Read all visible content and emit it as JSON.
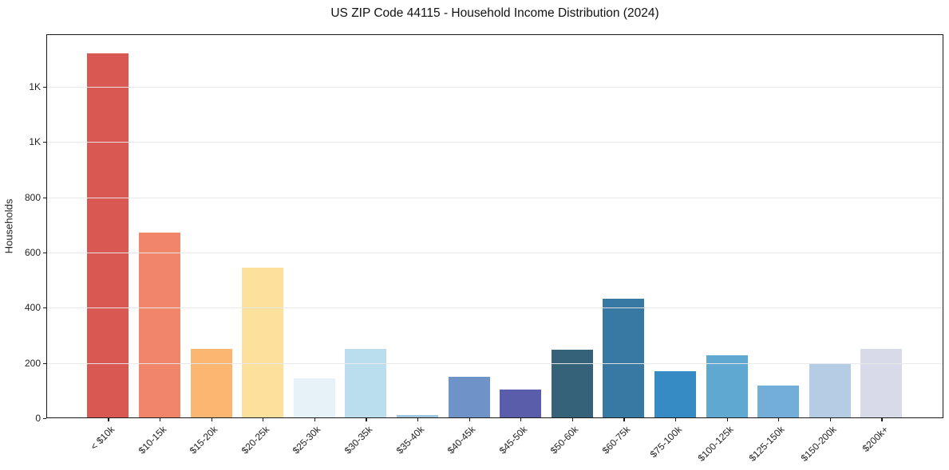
{
  "window": {
    "background_color": "#ffffff"
  },
  "chart_data": {
    "type": "bar",
    "title": "US ZIP Code 44115 - Household Income Distribution (2024)",
    "xlabel": "",
    "ylabel": "Households",
    "ylim": [
      0,
      1390
    ],
    "grid": "horizontal",
    "legend": "none",
    "categories": [
      "< $10k",
      "$10-15k",
      "$15-20k",
      "$20-25k",
      "$25-30k",
      "$30-35k",
      "$35-40k",
      "$40-45k",
      "$45-50k",
      "$50-60k",
      "$60-75k",
      "$75-100k",
      "$100-125k",
      "$125-150k",
      "$150-200k",
      "$200k+"
    ],
    "values": [
      1320,
      673,
      250,
      544,
      145,
      251,
      12,
      150,
      105,
      249,
      433,
      171,
      227,
      119,
      200,
      250
    ],
    "bar_colors": [
      "#D95852",
      "#F0856A",
      "#FBB671",
      "#FCE09C",
      "#E6F2F7",
      "#BBDEEE",
      "#9FC7E1",
      "#6E93C9",
      "#5A5DAA",
      "#356179",
      "#3879A4",
      "#368BC4",
      "#5FA8D1",
      "#72AED8",
      "#B5CCE5",
      "#D8DAE9"
    ],
    "yticks": [
      {
        "value": 0,
        "label": "0"
      },
      {
        "value": 200,
        "label": "200"
      },
      {
        "value": 400,
        "label": "400"
      },
      {
        "value": 600,
        "label": "600"
      },
      {
        "value": 800,
        "label": "800"
      },
      {
        "value": 1000,
        "label": "1K"
      },
      {
        "value": 1200,
        "label": "1K"
      }
    ],
    "colors": {
      "grid": "#e8e8e8",
      "spine": "#1a1a1a",
      "tick_text": "#222222",
      "title_text": "#111111"
    }
  }
}
